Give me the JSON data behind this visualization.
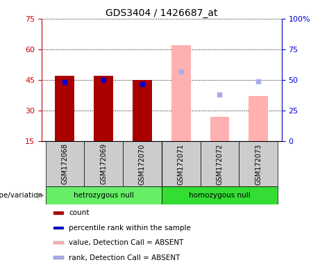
{
  "title": "GDS3404 / 1426687_at",
  "samples": [
    "GSM172068",
    "GSM172069",
    "GSM172070",
    "GSM172071",
    "GSM172072",
    "GSM172073"
  ],
  "ylim_left": [
    15,
    75
  ],
  "ylim_right": [
    0,
    100
  ],
  "yticks_left": [
    15,
    30,
    45,
    60,
    75
  ],
  "yticks_right": [
    0,
    25,
    50,
    75,
    100
  ],
  "ytick_right_labels": [
    "0",
    "25",
    "50",
    "75",
    "100%"
  ],
  "count_values": [
    47,
    47,
    45,
    null,
    null,
    null
  ],
  "percentile_values": [
    44,
    45,
    43,
    null,
    null,
    null
  ],
  "absent_value": [
    null,
    null,
    null,
    62,
    27,
    37
  ],
  "absent_rank": [
    null,
    null,
    null,
    57,
    38,
    49
  ],
  "bar_color_present": "#aa0000",
  "bar_color_absent": "#ffb0b0",
  "square_color_present": "#0000cc",
  "square_color_absent": "#aaaaee",
  "group_colors": [
    "#66ee66",
    "#33dd33"
  ],
  "label_area_color": "#cccccc",
  "left_axis_color": "#cc0000",
  "right_axis_color": "#0000cc",
  "bar_width": 0.5,
  "legend_items": [
    {
      "label": "count",
      "color": "#aa0000"
    },
    {
      "label": "percentile rank within the sample",
      "color": "#0000cc"
    },
    {
      "label": "value, Detection Call = ABSENT",
      "color": "#ffb0b0"
    },
    {
      "label": "rank, Detection Call = ABSENT",
      "color": "#aaaaee"
    }
  ]
}
